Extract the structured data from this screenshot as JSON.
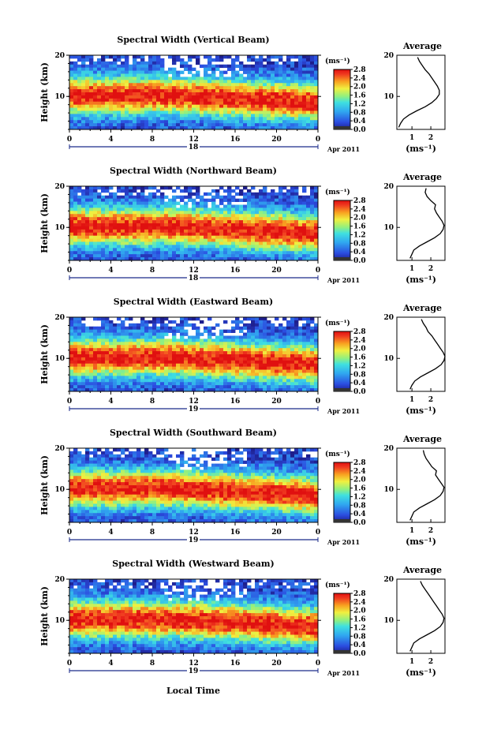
{
  "figure": {
    "xlabel": "Local Time",
    "date_label": "Apr 2011",
    "colorbar_unit": "(ms⁻¹)",
    "colorbar_ticks": [
      "0.0",
      "0.4",
      "0.8",
      "1.2",
      "1.6",
      "2.0",
      "2.4",
      "2.8"
    ],
    "profile_title": "Average",
    "profile_unit": "(ms⁻¹)",
    "ylabel": "Height (km)",
    "colors": {
      "low": "#2b3aa8",
      "mid": "#38c6d8",
      "high": "#f03a20",
      "max": "#ff1a1a"
    }
  },
  "chart_data": [
    {
      "type": "heatmap",
      "title": "Spectral Width (Vertical Beam)",
      "ylabel": "Height (km)",
      "xticks": [
        "0",
        "4",
        "8",
        "12",
        "16",
        "20",
        "0"
      ],
      "yticks": [
        "10",
        "20"
      ],
      "xlim": [
        0,
        24
      ],
      "ylim": [
        2,
        20
      ],
      "day_markers": [
        "18"
      ],
      "colorbar_range": [
        0.0,
        2.8
      ],
      "profile": {
        "title": "Average",
        "xlabel": "(ms⁻¹)",
        "xticks": [
          "1",
          "2"
        ],
        "yticks": [
          "10",
          "20"
        ],
        "points": [
          [
            0.3,
            2.5
          ],
          [
            0.4,
            3.5
          ],
          [
            0.55,
            4.5
          ],
          [
            0.85,
            5.5
          ],
          [
            1.25,
            6.5
          ],
          [
            1.7,
            7.5
          ],
          [
            2.05,
            8.5
          ],
          [
            2.3,
            9.5
          ],
          [
            2.45,
            10.5
          ],
          [
            2.45,
            11.5
          ],
          [
            2.35,
            12.5
          ],
          [
            2.2,
            13.5
          ],
          [
            2.05,
            14.5
          ],
          [
            1.9,
            15.5
          ],
          [
            1.7,
            16.5
          ],
          [
            1.55,
            17.5
          ],
          [
            1.4,
            18.5
          ],
          [
            1.3,
            19.5
          ]
        ]
      }
    },
    {
      "type": "heatmap",
      "title": "Spectral Width (Northward Beam)",
      "ylabel": "Height (km)",
      "xticks": [
        "0",
        "4",
        "8",
        "12",
        "16",
        "20",
        "0"
      ],
      "yticks": [
        "10",
        "20"
      ],
      "xlim": [
        0,
        24
      ],
      "ylim": [
        2,
        20
      ],
      "day_markers": [
        "18"
      ],
      "colorbar_range": [
        0.0,
        2.8
      ],
      "profile": {
        "title": "Average",
        "xlabel": "(ms⁻¹)",
        "xticks": [
          "1",
          "2"
        ],
        "yticks": [
          "10",
          "20"
        ],
        "points": [
          [
            0.9,
            2.5
          ],
          [
            1.0,
            3.5
          ],
          [
            1.1,
            4.5
          ],
          [
            1.4,
            5.5
          ],
          [
            1.8,
            6.5
          ],
          [
            2.2,
            7.5
          ],
          [
            2.5,
            8.5
          ],
          [
            2.65,
            9.5
          ],
          [
            2.7,
            10.5
          ],
          [
            2.6,
            11.5
          ],
          [
            2.45,
            12.5
          ],
          [
            2.3,
            13.5
          ],
          [
            2.2,
            14.5
          ],
          [
            2.25,
            15.5
          ],
          [
            2.0,
            16.5
          ],
          [
            1.8,
            17.5
          ],
          [
            1.7,
            18.5
          ],
          [
            1.75,
            19.5
          ]
        ]
      }
    },
    {
      "type": "heatmap",
      "title": "Spectral Width (Eastward Beam)",
      "ylabel": "Height (km)",
      "xticks": [
        "0",
        "4",
        "8",
        "12",
        "16",
        "20",
        "0"
      ],
      "yticks": [
        "10",
        "20"
      ],
      "xlim": [
        0,
        24
      ],
      "ylim": [
        2,
        20
      ],
      "day_markers": [
        "19"
      ],
      "colorbar_range": [
        0.0,
        2.8
      ],
      "profile": {
        "title": "Average",
        "xlabel": "(ms⁻¹)",
        "xticks": [
          "1",
          "2"
        ],
        "yticks": [
          "10",
          "20"
        ],
        "points": [
          [
            0.9,
            2.5
          ],
          [
            1.0,
            3.5
          ],
          [
            1.15,
            4.5
          ],
          [
            1.45,
            5.5
          ],
          [
            1.85,
            6.5
          ],
          [
            2.25,
            7.5
          ],
          [
            2.55,
            8.5
          ],
          [
            2.7,
            9.5
          ],
          [
            2.75,
            10.5
          ],
          [
            2.65,
            11.5
          ],
          [
            2.5,
            12.5
          ],
          [
            2.35,
            13.5
          ],
          [
            2.2,
            14.5
          ],
          [
            2.05,
            15.5
          ],
          [
            1.85,
            16.5
          ],
          [
            1.75,
            17.5
          ],
          [
            1.6,
            18.5
          ],
          [
            1.5,
            19.5
          ]
        ]
      }
    },
    {
      "type": "heatmap",
      "title": "Spectral Width (Southward Beam)",
      "ylabel": "Height (km)",
      "xticks": [
        "0",
        "4",
        "8",
        "12",
        "16",
        "20",
        "0"
      ],
      "yticks": [
        "10",
        "20"
      ],
      "xlim": [
        0,
        24
      ],
      "ylim": [
        2,
        20
      ],
      "day_markers": [
        "19"
      ],
      "colorbar_range": [
        0.0,
        2.8
      ],
      "profile": {
        "title": "Average",
        "xlabel": "(ms⁻¹)",
        "xticks": [
          "1",
          "2"
        ],
        "yticks": [
          "10",
          "20"
        ],
        "points": [
          [
            0.9,
            2.5
          ],
          [
            1.0,
            3.5
          ],
          [
            1.1,
            4.5
          ],
          [
            1.4,
            5.5
          ],
          [
            1.8,
            6.5
          ],
          [
            2.2,
            7.5
          ],
          [
            2.5,
            8.5
          ],
          [
            2.65,
            9.5
          ],
          [
            2.7,
            10.5
          ],
          [
            2.55,
            11.5
          ],
          [
            2.4,
            12.5
          ],
          [
            2.25,
            13.5
          ],
          [
            2.3,
            14.5
          ],
          [
            2.05,
            15.5
          ],
          [
            1.9,
            16.5
          ],
          [
            1.75,
            17.5
          ],
          [
            1.65,
            18.5
          ],
          [
            1.6,
            19.5
          ]
        ]
      }
    },
    {
      "type": "heatmap",
      "title": "Spectral Width (Westward Beam)",
      "ylabel": "Height (km)",
      "xticks": [
        "0",
        "4",
        "8",
        "12",
        "16",
        "20",
        "0"
      ],
      "yticks": [
        "10",
        "20"
      ],
      "xlim": [
        0,
        24
      ],
      "ylim": [
        2,
        20
      ],
      "day_markers": [
        "19"
      ],
      "colorbar_range": [
        0.0,
        2.8
      ],
      "profile": {
        "title": "Average",
        "xlabel": "(ms⁻¹)",
        "xticks": [
          "1",
          "2"
        ],
        "yticks": [
          "10",
          "20"
        ],
        "points": [
          [
            0.9,
            2.5
          ],
          [
            1.0,
            3.5
          ],
          [
            1.1,
            4.5
          ],
          [
            1.4,
            5.5
          ],
          [
            1.8,
            6.5
          ],
          [
            2.2,
            7.5
          ],
          [
            2.5,
            8.5
          ],
          [
            2.65,
            9.5
          ],
          [
            2.7,
            10.5
          ],
          [
            2.6,
            11.5
          ],
          [
            2.45,
            12.5
          ],
          [
            2.3,
            13.5
          ],
          [
            2.15,
            14.5
          ],
          [
            2.0,
            15.5
          ],
          [
            1.85,
            16.5
          ],
          [
            1.7,
            17.5
          ],
          [
            1.55,
            18.5
          ],
          [
            1.45,
            19.5
          ]
        ]
      }
    }
  ]
}
